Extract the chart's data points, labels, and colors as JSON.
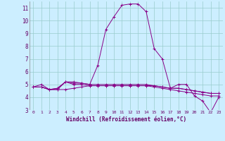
{
  "xlabel": "Windchill (Refroidissement éolien,°C)",
  "background_color": "#cceeff",
  "grid_color": "#99cccc",
  "line_color": "#880088",
  "xlim": [
    -0.5,
    23.5
  ],
  "ylim": [
    3,
    11.5
  ],
  "xticks": [
    0,
    1,
    2,
    3,
    4,
    5,
    6,
    7,
    8,
    9,
    10,
    11,
    12,
    13,
    14,
    15,
    16,
    17,
    18,
    19,
    20,
    21,
    22,
    23
  ],
  "yticks": [
    3,
    4,
    5,
    6,
    7,
    8,
    9,
    10,
    11
  ],
  "series": [
    [
      4.8,
      5.0,
      4.6,
      4.6,
      5.2,
      5.1,
      5.1,
      5.0,
      6.5,
      9.3,
      10.3,
      11.2,
      11.3,
      11.3,
      10.7,
      7.8,
      7.0,
      4.7,
      5.0,
      5.0,
      4.1,
      3.7,
      2.8,
      4.0
    ],
    [
      4.8,
      4.8,
      4.6,
      4.6,
      4.6,
      4.7,
      4.8,
      4.9,
      4.9,
      4.9,
      4.9,
      4.9,
      4.9,
      4.9,
      4.9,
      4.8,
      4.7,
      4.6,
      4.5,
      4.4,
      4.3,
      4.2,
      4.1,
      4.1
    ],
    [
      4.8,
      4.8,
      4.6,
      4.7,
      5.2,
      5.0,
      5.0,
      4.9,
      4.9,
      4.9,
      4.9,
      4.9,
      4.9,
      4.9,
      4.9,
      4.9,
      4.8,
      4.7,
      4.7,
      4.6,
      4.5,
      4.4,
      4.3,
      4.3
    ],
    [
      4.8,
      4.8,
      4.6,
      4.7,
      5.2,
      5.2,
      5.1,
      5.0,
      5.0,
      5.0,
      5.0,
      5.0,
      5.0,
      5.0,
      5.0,
      4.9,
      4.8,
      4.7,
      4.7,
      4.6,
      4.5,
      4.4,
      4.3,
      4.3
    ]
  ]
}
